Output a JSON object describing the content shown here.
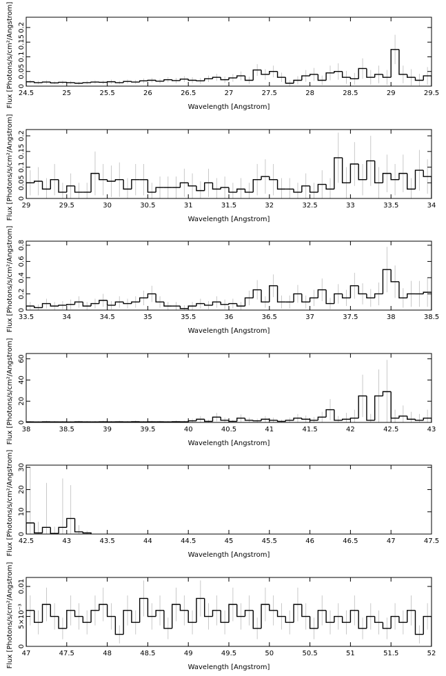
{
  "chart_data": [
    {
      "type": "histogram",
      "color": "#000000",
      "error_color": "#bbbbbb",
      "x_label": "Wavelength [Angstrom]",
      "y_label": "Flux [Photons/s/cm²/Angstrom]",
      "xlim": [
        24.5,
        29.5
      ],
      "ylim": [
        0,
        0.235
      ],
      "xticks": [
        24.5,
        25,
        25.5,
        26,
        26.5,
        27,
        27.5,
        28,
        28.5,
        29,
        29.5
      ],
      "yticks": [
        0,
        0.05,
        0.1,
        0.15,
        0.2
      ],
      "bins": [
        24.5,
        24.6,
        24.7,
        24.8,
        24.9,
        25.0,
        25.1,
        25.2,
        25.3,
        25.4,
        25.5,
        25.6,
        25.7,
        25.8,
        25.9,
        26.0,
        26.1,
        26.2,
        26.3,
        26.4,
        26.5,
        26.6,
        26.7,
        26.8,
        26.9,
        27.0,
        27.1,
        27.2,
        27.3,
        27.4,
        27.5,
        27.6,
        27.7,
        27.8,
        27.9,
        28.0,
        28.1,
        28.2,
        28.3,
        28.4,
        28.5,
        28.6,
        28.7,
        28.8,
        28.9,
        29.0,
        29.1,
        29.2,
        29.3,
        29.4,
        29.5
      ],
      "values": [
        0.015,
        0.012,
        0.014,
        0.011,
        0.013,
        0.012,
        0.01,
        0.012,
        0.014,
        0.013,
        0.015,
        0.012,
        0.016,
        0.014,
        0.018,
        0.02,
        0.017,
        0.022,
        0.019,
        0.024,
        0.02,
        0.018,
        0.025,
        0.03,
        0.022,
        0.028,
        0.035,
        0.02,
        0.055,
        0.04,
        0.05,
        0.03,
        0.01,
        0.02,
        0.035,
        0.04,
        0.02,
        0.045,
        0.05,
        0.03,
        0.025,
        0.06,
        0.03,
        0.04,
        0.03,
        0.125,
        0.04,
        0.03,
        0.02,
        0.035
      ],
      "errors": [
        0.006,
        0.006,
        0.006,
        0.005,
        0.006,
        0.006,
        0.005,
        0.006,
        0.006,
        0.006,
        0.007,
        0.006,
        0.007,
        0.007,
        0.008,
        0.008,
        0.008,
        0.009,
        0.009,
        0.01,
        0.01,
        0.01,
        0.011,
        0.012,
        0.011,
        0.013,
        0.015,
        0.012,
        0.02,
        0.018,
        0.02,
        0.016,
        0.01,
        0.014,
        0.02,
        0.022,
        0.016,
        0.025,
        0.028,
        0.022,
        0.02,
        0.035,
        0.025,
        0.03,
        0.025,
        0.05,
        0.03,
        0.028,
        0.022,
        0.03
      ]
    },
    {
      "type": "histogram",
      "color": "#000000",
      "error_color": "#bbbbbb",
      "x_label": "Wavelength [Angstrom]",
      "y_label": "Flux [Photons/s/cm²/Angstrom]",
      "xlim": [
        29,
        34
      ],
      "ylim": [
        0,
        0.22
      ],
      "xticks": [
        29,
        29.5,
        30,
        30.5,
        31,
        31.5,
        32,
        32.5,
        33,
        33.5,
        34
      ],
      "yticks": [
        0,
        0.05,
        0.1,
        0.15,
        0.2
      ],
      "bins": [
        29.0,
        29.1,
        29.2,
        29.3,
        29.4,
        29.5,
        29.6,
        29.7,
        29.8,
        29.9,
        30.0,
        30.1,
        30.2,
        30.3,
        30.4,
        30.5,
        30.6,
        30.7,
        30.8,
        30.9,
        31.0,
        31.1,
        31.2,
        31.3,
        31.4,
        31.5,
        31.6,
        31.7,
        31.8,
        31.9,
        32.0,
        32.1,
        32.2,
        32.3,
        32.4,
        32.5,
        32.6,
        32.7,
        32.8,
        32.9,
        33.0,
        33.1,
        33.2,
        33.3,
        33.4,
        33.5,
        33.6,
        33.7,
        33.8,
        33.9,
        34.0
      ],
      "values": [
        0.05,
        0.055,
        0.03,
        0.06,
        0.02,
        0.04,
        0.02,
        0.02,
        0.08,
        0.06,
        0.055,
        0.06,
        0.03,
        0.06,
        0.06,
        0.02,
        0.035,
        0.035,
        0.035,
        0.05,
        0.04,
        0.025,
        0.05,
        0.03,
        0.035,
        0.02,
        0.03,
        0.02,
        0.06,
        0.07,
        0.06,
        0.03,
        0.03,
        0.02,
        0.04,
        0.02,
        0.045,
        0.03,
        0.13,
        0.05,
        0.11,
        0.06,
        0.12,
        0.05,
        0.08,
        0.06,
        0.08,
        0.03,
        0.09,
        0.07
      ],
      "errors": [
        0.04,
        0.045,
        0.035,
        0.05,
        0.03,
        0.04,
        0.03,
        0.03,
        0.07,
        0.05,
        0.05,
        0.055,
        0.035,
        0.05,
        0.05,
        0.03,
        0.035,
        0.035,
        0.035,
        0.045,
        0.04,
        0.03,
        0.045,
        0.035,
        0.035,
        0.03,
        0.035,
        0.03,
        0.05,
        0.055,
        0.05,
        0.035,
        0.035,
        0.03,
        0.04,
        0.03,
        0.045,
        0.035,
        0.08,
        0.05,
        0.07,
        0.05,
        0.08,
        0.05,
        0.06,
        0.05,
        0.06,
        0.035,
        0.065,
        0.055
      ]
    },
    {
      "type": "histogram",
      "color": "#000000",
      "error_color": "#bbbbbb",
      "x_label": "Wavelength [Angstrom]",
      "y_label": "Flux [Photons/s/cm²/Angstrom]",
      "xlim": [
        33.5,
        38.5
      ],
      "ylim": [
        0,
        0.85
      ],
      "xticks": [
        33.5,
        34,
        34.5,
        35,
        35.5,
        36,
        36.5,
        37,
        37.5,
        38,
        38.5
      ],
      "yticks": [
        0,
        0.2,
        0.4,
        0.6,
        0.8
      ],
      "bins": [
        33.5,
        33.6,
        33.7,
        33.8,
        33.9,
        34.0,
        34.1,
        34.2,
        34.3,
        34.4,
        34.5,
        34.6,
        34.7,
        34.8,
        34.9,
        35.0,
        35.1,
        35.2,
        35.3,
        35.4,
        35.5,
        35.6,
        35.7,
        35.8,
        35.9,
        36.0,
        36.1,
        36.2,
        36.3,
        36.4,
        36.5,
        36.6,
        36.7,
        36.8,
        36.9,
        37.0,
        37.1,
        37.2,
        37.3,
        37.4,
        37.5,
        37.6,
        37.7,
        37.8,
        37.9,
        38.0,
        38.1,
        38.2,
        38.3,
        38.4,
        38.5
      ],
      "values": [
        0.05,
        0.03,
        0.08,
        0.05,
        0.06,
        0.07,
        0.1,
        0.05,
        0.08,
        0.12,
        0.06,
        0.1,
        0.08,
        0.1,
        0.15,
        0.2,
        0.1,
        0.05,
        0.05,
        0.02,
        0.05,
        0.08,
        0.06,
        0.1,
        0.07,
        0.08,
        0.05,
        0.15,
        0.25,
        0.1,
        0.3,
        0.1,
        0.1,
        0.2,
        0.1,
        0.15,
        0.25,
        0.08,
        0.2,
        0.15,
        0.3,
        0.2,
        0.15,
        0.2,
        0.5,
        0.35,
        0.15,
        0.2,
        0.2,
        0.22
      ],
      "errors": [
        0.05,
        0.04,
        0.06,
        0.05,
        0.05,
        0.06,
        0.07,
        0.05,
        0.06,
        0.08,
        0.05,
        0.07,
        0.06,
        0.07,
        0.09,
        0.1,
        0.07,
        0.05,
        0.05,
        0.04,
        0.05,
        0.06,
        0.05,
        0.07,
        0.06,
        0.06,
        0.05,
        0.09,
        0.12,
        0.07,
        0.14,
        0.08,
        0.08,
        0.11,
        0.08,
        0.1,
        0.14,
        0.07,
        0.12,
        0.1,
        0.16,
        0.13,
        0.11,
        0.14,
        0.28,
        0.2,
        0.12,
        0.16,
        0.16,
        0.18
      ]
    },
    {
      "type": "histogram",
      "color": "#000000",
      "error_color": "#bbbbbb",
      "x_label": "Wavelength [Angstrom]",
      "y_label": "Flux [Photons/s/cm²/Angstrom]",
      "xlim": [
        38,
        43
      ],
      "ylim": [
        0,
        65
      ],
      "xticks": [
        38,
        38.5,
        39,
        39.5,
        40,
        40.5,
        41,
        41.5,
        42,
        42.5,
        43
      ],
      "yticks": [
        0,
        20,
        40,
        60
      ],
      "bins": [
        38.0,
        38.1,
        38.2,
        38.3,
        38.4,
        38.5,
        38.6,
        38.7,
        38.8,
        38.9,
        39.0,
        39.1,
        39.2,
        39.3,
        39.4,
        39.5,
        39.6,
        39.7,
        39.8,
        39.9,
        40.0,
        40.1,
        40.2,
        40.3,
        40.4,
        40.5,
        40.6,
        40.7,
        40.8,
        40.9,
        41.0,
        41.1,
        41.2,
        41.3,
        41.4,
        41.5,
        41.6,
        41.7,
        41.8,
        41.9,
        42.0,
        42.1,
        42.2,
        42.3,
        42.4,
        42.5,
        42.6,
        42.7,
        42.8,
        42.9,
        43.0
      ],
      "values": [
        0.5,
        0.4,
        0.6,
        0.5,
        0.5,
        0.4,
        0.6,
        0.5,
        0.5,
        0.6,
        0.5,
        0.6,
        0.5,
        0.7,
        0.5,
        0.6,
        0.6,
        0.5,
        0.7,
        0.6,
        1.5,
        3,
        1,
        5,
        2,
        1,
        4,
        2,
        1.5,
        3,
        2,
        1,
        2,
        4,
        3,
        2,
        5,
        12,
        2,
        3,
        4,
        25,
        2,
        25,
        29,
        4,
        6,
        3,
        2,
        4
      ],
      "errors": [
        0.8,
        0.7,
        0.9,
        0.8,
        0.8,
        0.7,
        0.9,
        0.8,
        0.8,
        0.9,
        0.8,
        0.9,
        0.8,
        1,
        0.8,
        0.9,
        0.9,
        0.8,
        1,
        0.9,
        2,
        3,
        1.5,
        4,
        2.5,
        1.5,
        3.5,
        2.5,
        2,
        3,
        2.5,
        1.5,
        2.5,
        4,
        3.5,
        3,
        5,
        10,
        4,
        6,
        8,
        20,
        6,
        25,
        30,
        8,
        10,
        7,
        6,
        8
      ]
    },
    {
      "type": "histogram",
      "color": "#000000",
      "error_color": "#bbbbbb",
      "x_label": "Wavelength [Angstrom]",
      "y_label": "Flux [Photons/s/cm²/Angstrom]",
      "xlim": [
        42.5,
        47.5
      ],
      "ylim": [
        0,
        31
      ],
      "xticks": [
        42.5,
        43,
        43.5,
        44,
        44.5,
        45,
        45.5,
        46,
        46.5,
        47,
        47.5
      ],
      "yticks": [
        0,
        10,
        20,
        30
      ],
      "bins": [
        42.5,
        42.6,
        42.7,
        42.8,
        42.9,
        43.0,
        43.1,
        43.2,
        43.3
      ],
      "values": [
        5,
        0.5,
        3,
        0.3,
        3,
        7,
        1,
        0.5
      ],
      "errors": [
        25,
        5,
        20,
        3,
        22,
        15,
        3,
        1
      ]
    },
    {
      "type": "histogram",
      "color": "#000000",
      "error_color": "#bbbbbb",
      "x_label": "Wavelength [Angstrom]",
      "y_label": "Flux [Photons/s/cm²/Angstrom]",
      "xlim": [
        47,
        52
      ],
      "ylim": [
        0,
        0.0115
      ],
      "xticks": [
        47,
        47.5,
        48,
        48.5,
        49,
        49.5,
        50,
        50.5,
        51,
        51.5,
        52
      ],
      "yticks": [
        0,
        {
          "value": 0.005,
          "label": "5×10⁻³"
        },
        0.01
      ],
      "bins": [
        47.0,
        47.1,
        47.2,
        47.3,
        47.4,
        47.5,
        47.6,
        47.7,
        47.8,
        47.9,
        48.0,
        48.1,
        48.2,
        48.3,
        48.4,
        48.5,
        48.6,
        48.7,
        48.8,
        48.9,
        49.0,
        49.1,
        49.2,
        49.3,
        49.4,
        49.5,
        49.6,
        49.7,
        49.8,
        49.9,
        50.0,
        50.1,
        50.2,
        50.3,
        50.4,
        50.5,
        50.6,
        50.7,
        50.8,
        50.9,
        51.0,
        51.1,
        51.2,
        51.3,
        51.4,
        51.5,
        51.6,
        51.7,
        51.8,
        51.9,
        52.0
      ],
      "values": [
        0.006,
        0.004,
        0.007,
        0.005,
        0.003,
        0.006,
        0.005,
        0.004,
        0.006,
        0.007,
        0.005,
        0.002,
        0.006,
        0.004,
        0.008,
        0.005,
        0.006,
        0.003,
        0.007,
        0.006,
        0.004,
        0.008,
        0.005,
        0.006,
        0.004,
        0.007,
        0.005,
        0.006,
        0.003,
        0.007,
        0.006,
        0.005,
        0.004,
        0.007,
        0.005,
        0.003,
        0.006,
        0.004,
        0.005,
        0.004,
        0.006,
        0.003,
        0.005,
        0.004,
        0.003,
        0.005,
        0.004,
        0.006,
        0.002,
        0.005
      ],
      "errors": [
        0.0025,
        0.002,
        0.0028,
        0.0022,
        0.0018,
        0.0025,
        0.0022,
        0.002,
        0.0025,
        0.0028,
        0.0022,
        0.0015,
        0.0025,
        0.002,
        0.003,
        0.0022,
        0.0025,
        0.0018,
        0.0028,
        0.0025,
        0.002,
        0.003,
        0.0022,
        0.0025,
        0.002,
        0.0028,
        0.0022,
        0.0025,
        0.0018,
        0.0028,
        0.0025,
        0.0022,
        0.002,
        0.0028,
        0.0022,
        0.0018,
        0.0025,
        0.002,
        0.0022,
        0.002,
        0.0025,
        0.0018,
        0.0022,
        0.002,
        0.0018,
        0.0022,
        0.002,
        0.0025,
        0.0015,
        0.0022
      ]
    }
  ]
}
